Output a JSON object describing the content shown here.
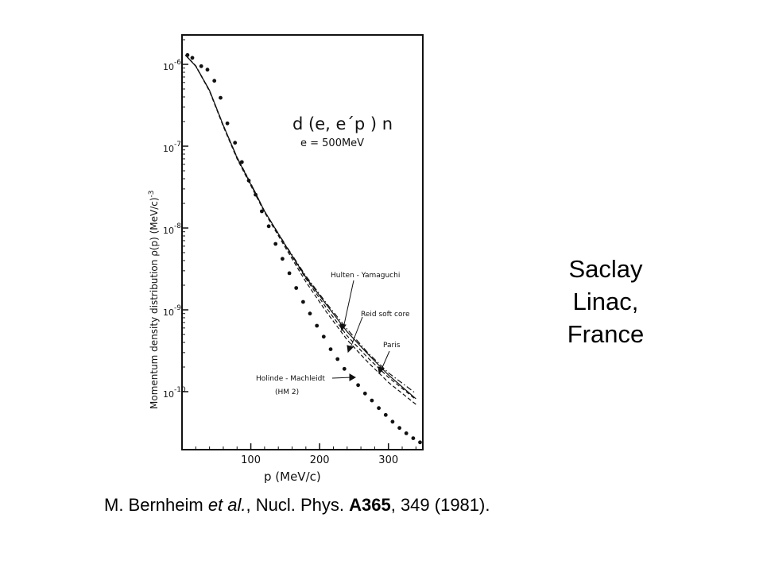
{
  "chart_data": {
    "type": "scatter",
    "title": "d (e, e´p ) n",
    "subtitle": "e = 500MeV",
    "xlabel": "p  (MeV/c)",
    "ylabel": "Momentum  density  distribution  ρ(p)  (MeV/c)",
    "ylabel_exp": "-3",
    "xlim": [
      0,
      350
    ],
    "ylim": [
      2.5e-11,
      1.6e-06
    ],
    "yscale": "log",
    "grid": false,
    "x_ticks": [
      {
        "value": 100,
        "label": "100"
      },
      {
        "value": 200,
        "label": "200"
      },
      {
        "value": 300,
        "label": "300"
      }
    ],
    "y_ticks": [
      {
        "value": 1e-06,
        "base": "10",
        "exp": "-6"
      },
      {
        "value": 1e-07,
        "base": "10",
        "exp": "-7"
      },
      {
        "value": 1e-08,
        "base": "10",
        "exp": "-8"
      },
      {
        "value": 1e-09,
        "base": "10",
        "exp": "-9"
      },
      {
        "value": 1e-10,
        "base": "10",
        "exp": "-10"
      }
    ],
    "series": [
      {
        "name": "Hulten - Yamaguchi",
        "style": "solid",
        "x": [
          5,
          20,
          40,
          60,
          80,
          100,
          120,
          150,
          180,
          210,
          240,
          270,
          300,
          340
        ],
        "y": [
          1.3e-06,
          9.5e-07,
          4.8e-07,
          1.8e-07,
          7.2e-08,
          3.4e-08,
          1.6e-08,
          6.2e-09,
          2.5e-09,
          1.15e-09,
          5.4e-10,
          2.9e-10,
          1.6e-10,
          8.2e-11
        ]
      },
      {
        "name": "Reid soft core",
        "style": "dash-dot",
        "x": [
          5,
          20,
          40,
          60,
          80,
          100,
          120,
          150,
          180,
          210,
          240,
          270,
          300,
          340
        ],
        "y": [
          1.3e-06,
          9.6e-07,
          4.8e-07,
          1.8e-07,
          7.3e-08,
          3.5e-08,
          1.6e-08,
          6.3e-09,
          2.6e-09,
          1.2e-09,
          5.8e-10,
          3e-10,
          1.7e-10,
          9.5e-11
        ]
      },
      {
        "name": "Paris",
        "style": "dashed",
        "x": [
          5,
          20,
          40,
          60,
          80,
          100,
          120,
          150,
          180,
          210,
          240,
          270,
          300,
          340
        ],
        "y": [
          1.3e-06,
          9.6e-07,
          4.8e-07,
          1.8e-07,
          7.3e-08,
          3.5e-08,
          1.6e-08,
          6.1e-09,
          2.4e-09,
          1.05e-09,
          4.8e-10,
          2.6e-10,
          1.5e-10,
          8e-11
        ]
      },
      {
        "name": "Holinde - Machleidt",
        "style": "dashed",
        "x": [
          5,
          20,
          40,
          60,
          80,
          100,
          120,
          150,
          180,
          210,
          240,
          270,
          300,
          340
        ],
        "y": [
          1.3e-06,
          9.5e-07,
          4.7e-07,
          1.75e-07,
          7e-08,
          3.3e-08,
          1.55e-08,
          5.8e-09,
          2.2e-09,
          9.4e-10,
          4.3e-10,
          2.3e-10,
          1.3e-10,
          7e-11
        ]
      },
      {
        "name": "",
        "style": "points",
        "x": [
          8,
          15,
          28,
          37,
          47,
          56,
          66,
          77,
          87,
          97,
          107,
          116,
          126,
          136,
          146,
          156,
          166,
          176,
          186,
          196,
          206,
          216,
          226,
          236,
          246,
          256,
          266,
          276,
          286,
          296,
          306,
          316,
          326,
          336,
          346
        ],
        "y": [
          1.3e-06,
          1.2e-06,
          9.5e-07,
          8.6e-07,
          6.3e-07,
          3.9e-07,
          1.9e-07,
          1.1e-07,
          6.4e-08,
          3.8e-08,
          2.55e-08,
          1.6e-08,
          1.05e-08,
          6.4e-09,
          4.2e-09,
          2.8e-09,
          1.85e-09,
          1.25e-09,
          9e-10,
          6.4e-10,
          4.7e-10,
          3.3e-10,
          2.5e-10,
          1.9e-10,
          1.5e-10,
          1.2e-10,
          9.5e-11,
          7.8e-11,
          6.3e-11,
          5.2e-11,
          4.3e-11,
          3.6e-11,
          3.1e-11,
          2.7e-11,
          2.4e-11
        ]
      }
    ],
    "annotations": [
      {
        "id": "hulten",
        "text": "Hulten - Yamaguchi"
      },
      {
        "id": "reid",
        "text": "Reid soft core"
      },
      {
        "id": "paris",
        "text": "Paris"
      },
      {
        "id": "holinde",
        "text": "Holinde - Machleidt"
      },
      {
        "id": "hm2",
        "text": "(HM 2)"
      }
    ]
  },
  "side_label": [
    "Saclay",
    "Linac,",
    "France"
  ],
  "citation": {
    "author": "M. Bernheim ",
    "et_al": "et al.",
    "journal": ", Nucl. Phys. ",
    "volume": "A365",
    "rest": ", 349 (1981)."
  }
}
